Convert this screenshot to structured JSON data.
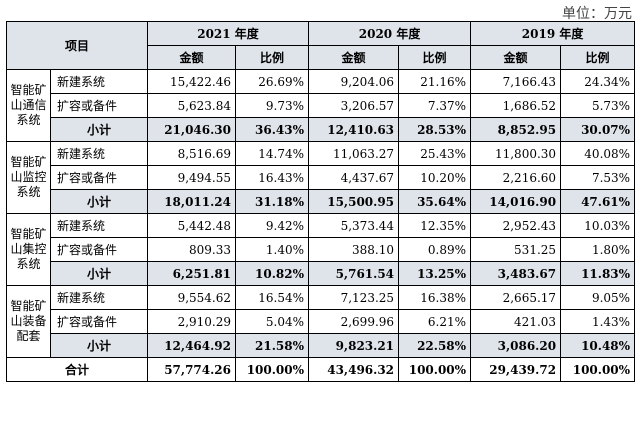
{
  "unit_label": "单位：万元",
  "header": {
    "item": "项目",
    "years": [
      "2021 年度",
      "2020 年度",
      "2019 年度"
    ],
    "amount": "金额",
    "ratio": "比例"
  },
  "groups": [
    {
      "name": "智能矿山通信系统",
      "rows": [
        {
          "label": "新建系统",
          "v": [
            "15,422.46",
            "26.69%",
            "9,204.06",
            "21.16%",
            "7,166.43",
            "24.34%"
          ]
        },
        {
          "label": "扩容或备件",
          "v": [
            "5,623.84",
            "9.73%",
            "3,206.57",
            "7.37%",
            "1,686.52",
            "5.73%"
          ]
        }
      ],
      "subtotal": {
        "label": "小计",
        "v": [
          "21,046.30",
          "36.43%",
          "12,410.63",
          "28.53%",
          "8,852.95",
          "30.07%"
        ]
      }
    },
    {
      "name": "智能矿山监控系统",
      "rows": [
        {
          "label": "新建系统",
          "v": [
            "8,516.69",
            "14.74%",
            "11,063.27",
            "25.43%",
            "11,800.30",
            "40.08%"
          ]
        },
        {
          "label": "扩容或备件",
          "v": [
            "9,494.55",
            "16.43%",
            "4,437.67",
            "10.20%",
            "2,216.60",
            "7.53%"
          ]
        }
      ],
      "subtotal": {
        "label": "小计",
        "v": [
          "18,011.24",
          "31.18%",
          "15,500.95",
          "35.64%",
          "14,016.90",
          "47.61%"
        ]
      }
    },
    {
      "name": "智能矿山集控系统",
      "rows": [
        {
          "label": "新建系统",
          "v": [
            "5,442.48",
            "9.42%",
            "5,373.44",
            "12.35%",
            "2,952.43",
            "10.03%"
          ]
        },
        {
          "label": "扩容或备件",
          "v": [
            "809.33",
            "1.40%",
            "388.10",
            "0.89%",
            "531.25",
            "1.80%"
          ]
        }
      ],
      "subtotal": {
        "label": "小计",
        "v": [
          "6,251.81",
          "10.82%",
          "5,761.54",
          "13.25%",
          "3,483.67",
          "11.83%"
        ]
      }
    },
    {
      "name": "智能矿山装备配套",
      "rows": [
        {
          "label": "新建系统",
          "v": [
            "9,554.62",
            "16.54%",
            "7,123.25",
            "16.38%",
            "2,665.17",
            "9.05%"
          ]
        },
        {
          "label": "扩容或备件",
          "v": [
            "2,910.29",
            "5.04%",
            "2,699.96",
            "6.21%",
            "421.03",
            "1.43%"
          ]
        }
      ],
      "subtotal": {
        "label": "小计",
        "v": [
          "12,464.92",
          "21.58%",
          "9,823.21",
          "22.58%",
          "3,086.20",
          "10.48%"
        ]
      }
    }
  ],
  "total": {
    "label": "合计",
    "v": [
      "57,774.26",
      "100.00%",
      "43,496.32",
      "100.00%",
      "29,439.72",
      "100.00%"
    ]
  }
}
